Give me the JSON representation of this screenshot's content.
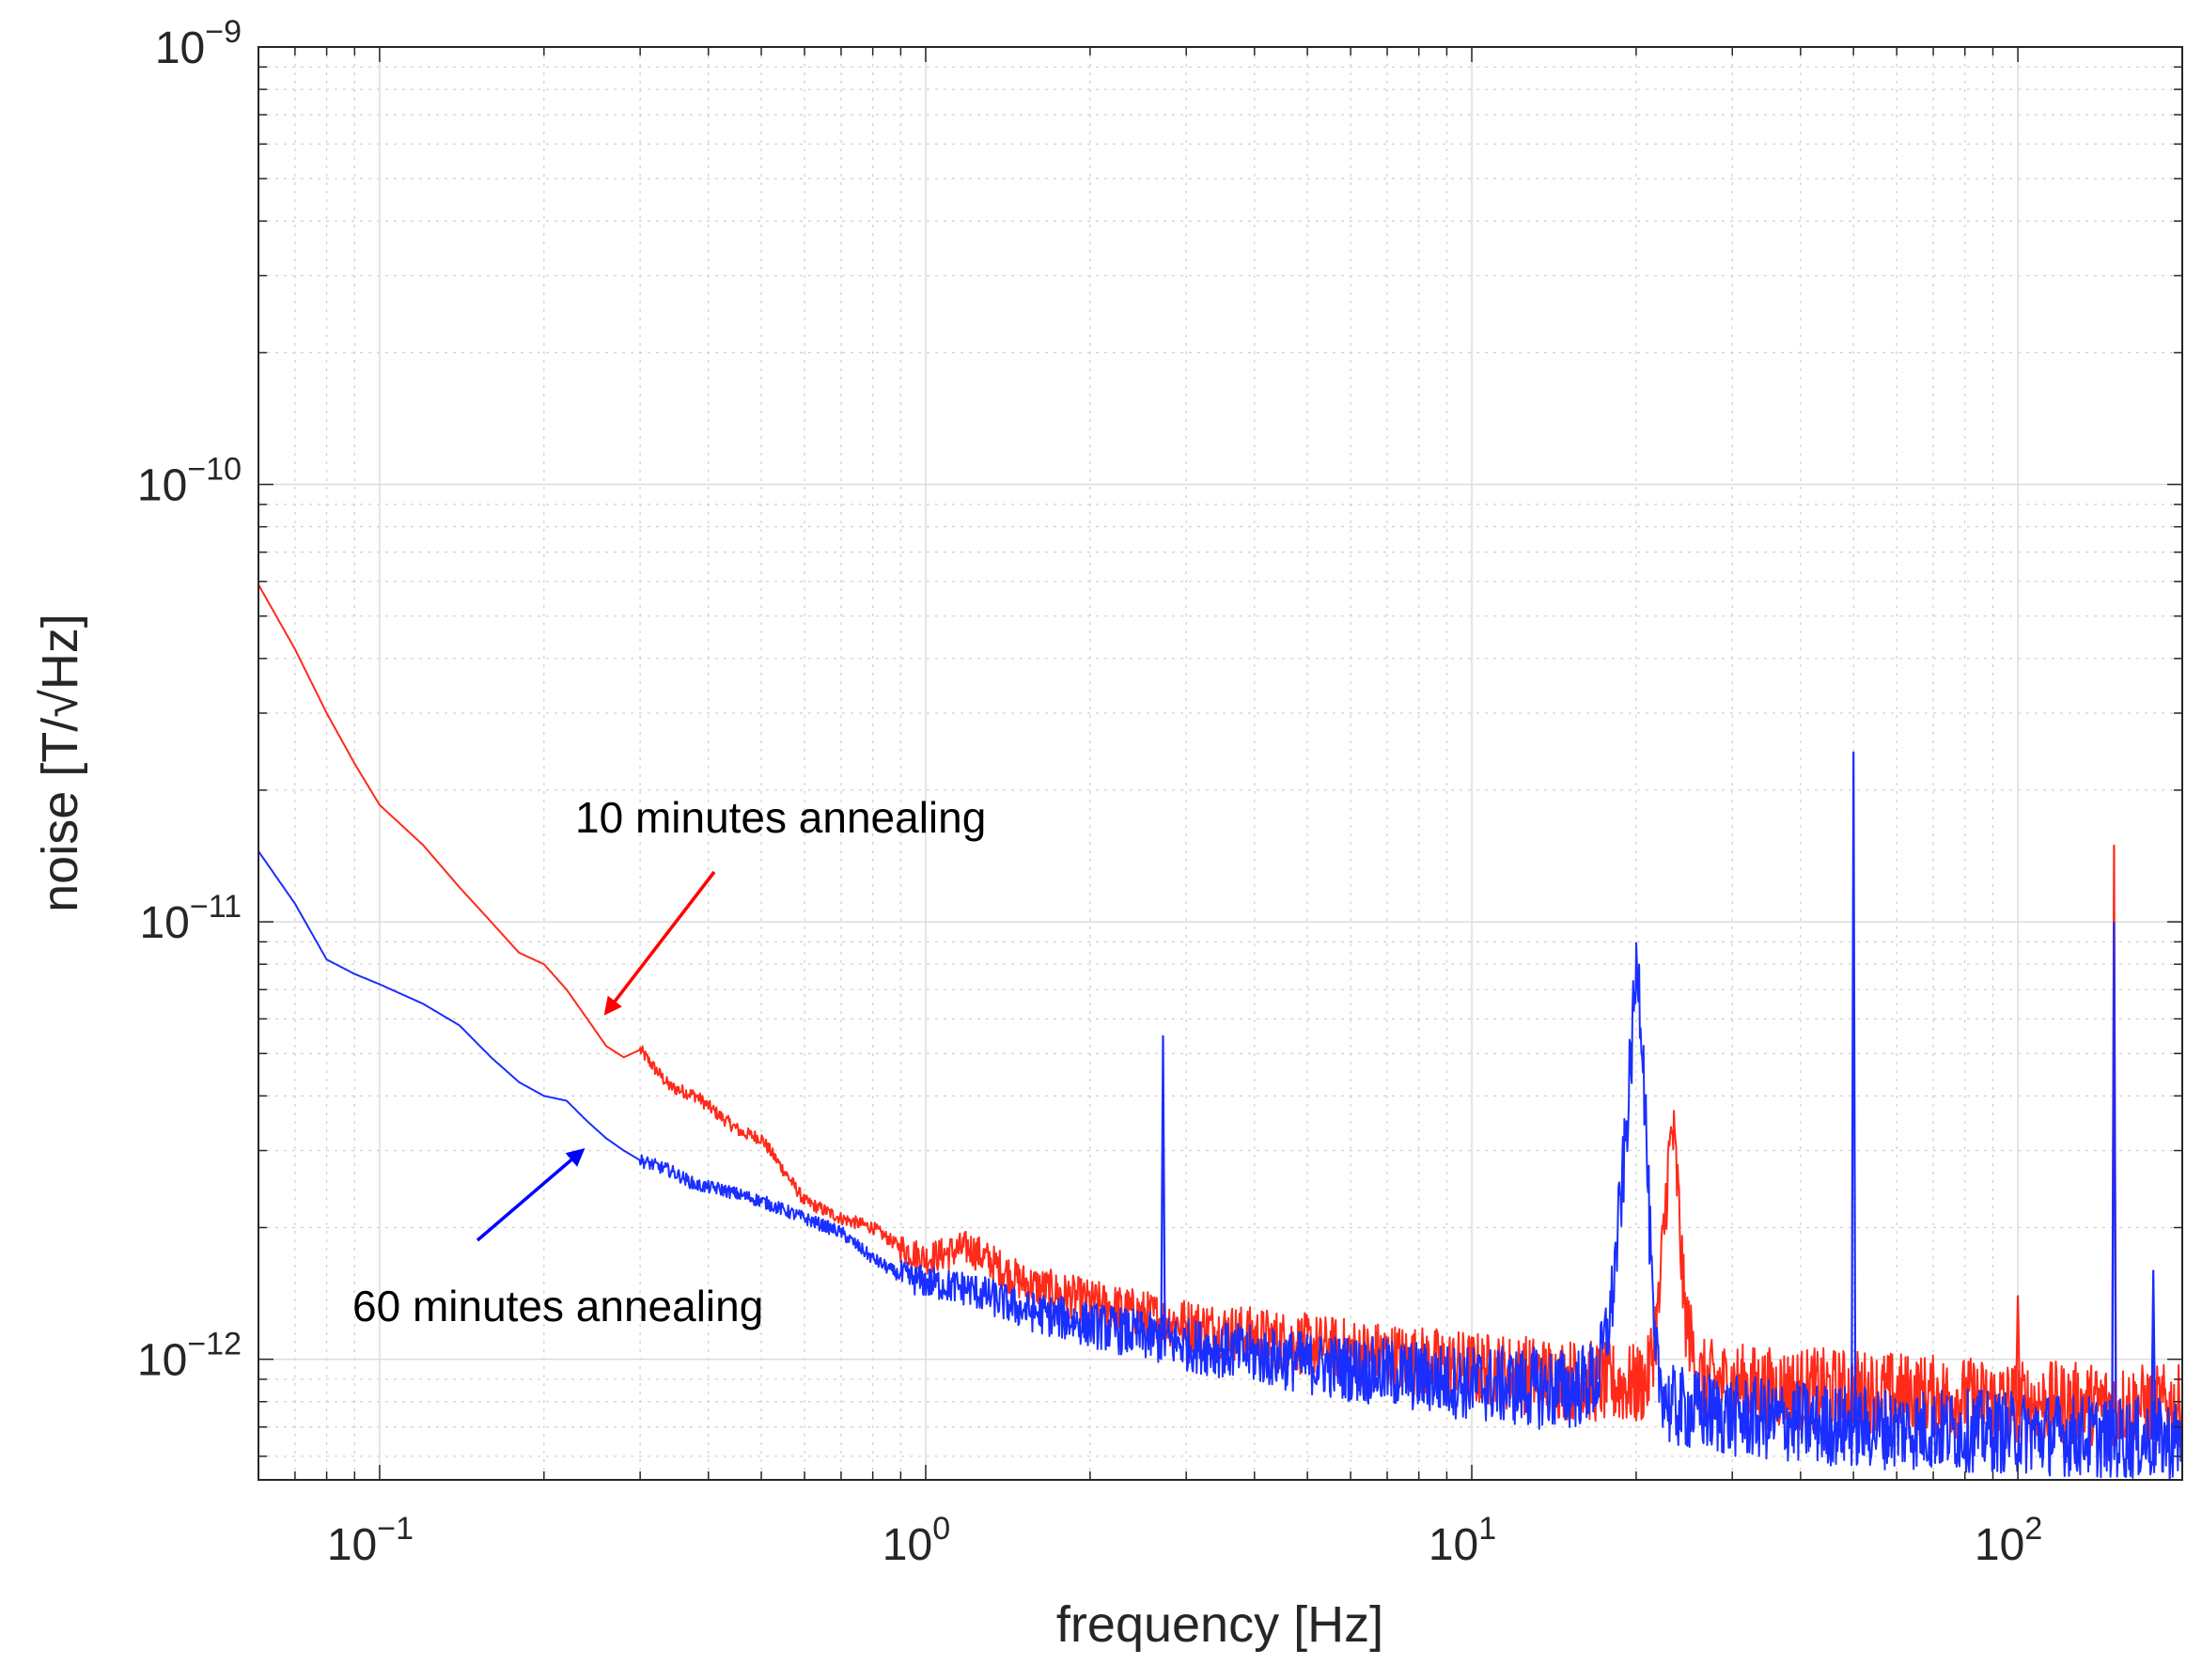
{
  "chart_data": {
    "type": "line",
    "title": "",
    "xlabel": "frequency [Hz]",
    "ylabel": "noise [T/√Hz]",
    "xscale": "log",
    "yscale": "log",
    "xlim": [
      0.06,
      200
    ],
    "ylim": [
      5.3e-13,
      1e-09
    ],
    "grid": true,
    "x_ticks": [
      {
        "value": 0.1,
        "base": "10",
        "exp": "−1"
      },
      {
        "value": 1,
        "base": "10",
        "exp": "0"
      },
      {
        "value": 10,
        "base": "10",
        "exp": "1"
      },
      {
        "value": 100,
        "base": "10",
        "exp": "2"
      }
    ],
    "y_ticks": [
      {
        "value": 1e-12,
        "base": "10",
        "exp": "−12"
      },
      {
        "value": 1e-11,
        "base": "10",
        "exp": "−11"
      },
      {
        "value": 1e-10,
        "base": "10",
        "exp": "−10"
      },
      {
        "value": 1e-09,
        "base": "10",
        "exp": "−9"
      }
    ],
    "series": [
      {
        "name": "10 minutes annealing",
        "color": "#ff2a1a",
        "points": [
          [
            0.06,
            5.9e-11
          ],
          [
            0.07,
            4.2e-11
          ],
          [
            0.08,
            3e-11
          ],
          [
            0.09,
            2.3e-11
          ],
          [
            0.1,
            1.85e-11
          ],
          [
            0.12,
            1.5e-11
          ],
          [
            0.14,
            1.2e-11
          ],
          [
            0.16,
            1e-11
          ],
          [
            0.18,
            8.5e-12
          ],
          [
            0.2,
            8e-12
          ],
          [
            0.22,
            7e-12
          ],
          [
            0.24,
            6e-12
          ],
          [
            0.26,
            5.2e-12
          ],
          [
            0.28,
            4.9e-12
          ],
          [
            0.3,
            5.1e-12
          ],
          [
            0.32,
            4.6e-12
          ],
          [
            0.34,
            4.2e-12
          ],
          [
            0.38,
            4e-12
          ],
          [
            0.42,
            3.6e-12
          ],
          [
            0.46,
            3.3e-12
          ],
          [
            0.5,
            3.2e-12
          ],
          [
            0.55,
            2.7e-12
          ],
          [
            0.6,
            2.3e-12
          ],
          [
            0.7,
            2.1e-12
          ],
          [
            0.8,
            2e-12
          ],
          [
            0.9,
            1.8e-12
          ],
          [
            1.0,
            1.7e-12
          ],
          [
            1.2,
            1.8e-12
          ],
          [
            1.5,
            1.5e-12
          ],
          [
            2.0,
            1.35e-12
          ],
          [
            3.0,
            1.2e-12
          ],
          [
            5.0,
            1.08e-12
          ],
          [
            10.0,
            9.5e-13
          ],
          [
            15.0,
            9e-13
          ],
          [
            18.0,
            8.8e-13
          ],
          [
            20.0,
            8.7e-13
          ],
          [
            21.0,
            9e-13
          ],
          [
            22.0,
            1.3e-12
          ],
          [
            22.8,
            2.6e-12
          ],
          [
            23.3,
            3.4e-12
          ],
          [
            23.8,
            2.5e-12
          ],
          [
            24.5,
            1.3e-12
          ],
          [
            26.0,
            9e-13
          ],
          [
            35.0,
            8.6e-13
          ],
          [
            50.0,
            8.5e-13
          ],
          [
            100.0,
            8e-13
          ],
          [
            200.0,
            7.8e-13
          ]
        ],
        "spikes": [
          [
            100.0,
            1.4e-12
          ],
          [
            150.0,
            1.5e-11
          ]
        ]
      },
      {
        "name": "60 minutes annealing",
        "color": "#1a2eff",
        "points": [
          [
            0.06,
            1.45e-11
          ],
          [
            0.07,
            1.1e-11
          ],
          [
            0.08,
            8.2e-12
          ],
          [
            0.09,
            7.6e-12
          ],
          [
            0.1,
            7.2e-12
          ],
          [
            0.12,
            6.5e-12
          ],
          [
            0.14,
            5.8e-12
          ],
          [
            0.16,
            4.9e-12
          ],
          [
            0.18,
            4.3e-12
          ],
          [
            0.2,
            4e-12
          ],
          [
            0.22,
            3.9e-12
          ],
          [
            0.24,
            3.5e-12
          ],
          [
            0.26,
            3.2e-12
          ],
          [
            0.28,
            3e-12
          ],
          [
            0.3,
            2.85e-12
          ],
          [
            0.34,
            2.7e-12
          ],
          [
            0.38,
            2.5e-12
          ],
          [
            0.42,
            2.45e-12
          ],
          [
            0.5,
            2.3e-12
          ],
          [
            0.6,
            2.1e-12
          ],
          [
            0.7,
            1.95e-12
          ],
          [
            0.8,
            1.7e-12
          ],
          [
            0.9,
            1.55e-12
          ],
          [
            1.0,
            1.5e-12
          ],
          [
            1.2,
            1.45e-12
          ],
          [
            1.5,
            1.3e-12
          ],
          [
            2.0,
            1.2e-12
          ],
          [
            3.0,
            1.08e-12
          ],
          [
            5.0,
            9.8e-13
          ],
          [
            10.0,
            8.8e-13
          ],
          [
            15.0,
            8.5e-13
          ],
          [
            17.0,
            9e-13
          ],
          [
            18.0,
            1.3e-12
          ],
          [
            19.0,
            2.8e-12
          ],
          [
            19.6,
            5e-12
          ],
          [
            20.1,
            8.5e-12
          ],
          [
            20.6,
            5e-12
          ],
          [
            21.1,
            2.2e-12
          ],
          [
            21.6,
            1e-12
          ],
          [
            23.0,
            7.8e-13
          ],
          [
            30.0,
            7.4e-13
          ],
          [
            50.0,
            7e-13
          ],
          [
            100.0,
            6.8e-13
          ],
          [
            200.0,
            6.5e-13
          ]
        ],
        "spikes": [
          [
            2.72,
            5.5e-12
          ],
          [
            50.0,
            2.45e-11
          ],
          [
            150.0,
            1e-11
          ],
          [
            177.0,
            1.6e-12
          ]
        ]
      }
    ],
    "annotations": [
      {
        "text": "10 minutes annealing",
        "color": "#ff0000",
        "points_to": [
          0.26,
          6.2e-12
        ]
      },
      {
        "text": "60 minutes annealing",
        "color": "#0000ff",
        "points_to": [
          0.235,
          3e-12
        ]
      }
    ]
  }
}
